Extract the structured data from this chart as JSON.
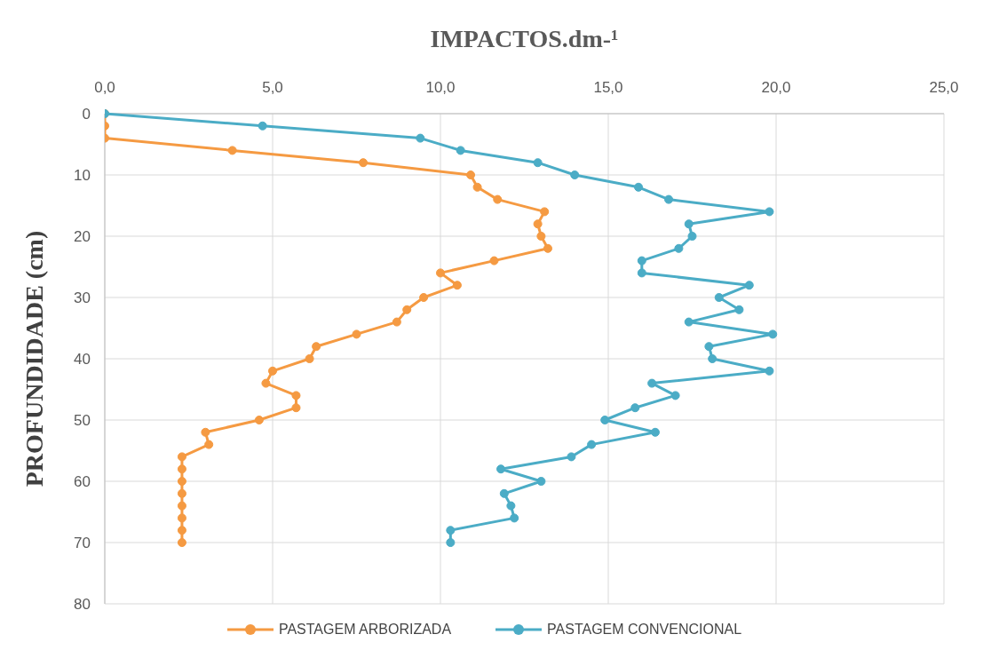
{
  "chart_data": {
    "type": "line",
    "xlabel": "IMPACTOS.dm-¹",
    "ylabel": "PROFUNDIDADE (cm)",
    "xlim": [
      0,
      25
    ],
    "xticks": [
      {
        "value": 0,
        "label": "0,0"
      },
      {
        "value": 5,
        "label": "5,0"
      },
      {
        "value": 10,
        "label": "10,0"
      },
      {
        "value": 15,
        "label": "15,0"
      },
      {
        "value": 20,
        "label": "20,0"
      },
      {
        "value": 25,
        "label": "25,0"
      }
    ],
    "ylim": [
      80,
      0
    ],
    "yticks": [
      0,
      10,
      20,
      30,
      40,
      50,
      60,
      70,
      80
    ],
    "grid": true,
    "legend": "bottom",
    "marker": "circle",
    "series": [
      {
        "name": "PASTAGEM ARBORIZADA",
        "color": "#f59a42",
        "x": [
          0,
          0,
          0,
          3.8,
          7.7,
          10.9,
          11.1,
          11.7,
          13.1,
          12.9,
          13.0,
          13.2,
          11.6,
          10.0,
          10.5,
          9.5,
          9.0,
          8.7,
          7.5,
          6.3,
          6.1,
          5.0,
          4.8,
          5.7,
          5.7,
          4.6,
          3.0,
          3.1,
          2.3,
          2.3,
          2.3,
          2.3,
          2.3,
          2.3,
          2.3,
          2.3
        ],
        "values": [
          0,
          2,
          4,
          6,
          8,
          10,
          12,
          14,
          16,
          18,
          20,
          22,
          24,
          26,
          28,
          30,
          32,
          34,
          36,
          38,
          40,
          42,
          44,
          46,
          48,
          50,
          52,
          54,
          56,
          58,
          60,
          62,
          64,
          66,
          68,
          70
        ]
      },
      {
        "name": "PASTAGEM CONVENCIONAL",
        "color": "#4bacc6",
        "x": [
          0,
          4.7,
          9.4,
          10.6,
          12.9,
          14.0,
          15.9,
          16.8,
          19.8,
          17.4,
          17.5,
          17.1,
          16.0,
          16.0,
          19.2,
          18.3,
          18.9,
          17.4,
          19.9,
          18.0,
          18.1,
          19.8,
          16.3,
          17.0,
          15.8,
          14.9,
          16.4,
          14.5,
          13.9,
          11.8,
          13.0,
          11.9,
          12.1,
          12.2,
          10.3,
          10.3
        ],
        "values": [
          0,
          2,
          4,
          6,
          8,
          10,
          12,
          14,
          16,
          18,
          20,
          22,
          24,
          26,
          28,
          30,
          32,
          34,
          36,
          38,
          40,
          42,
          44,
          46,
          48,
          50,
          52,
          54,
          56,
          58,
          60,
          62,
          64,
          66,
          68,
          70
        ]
      }
    ]
  }
}
